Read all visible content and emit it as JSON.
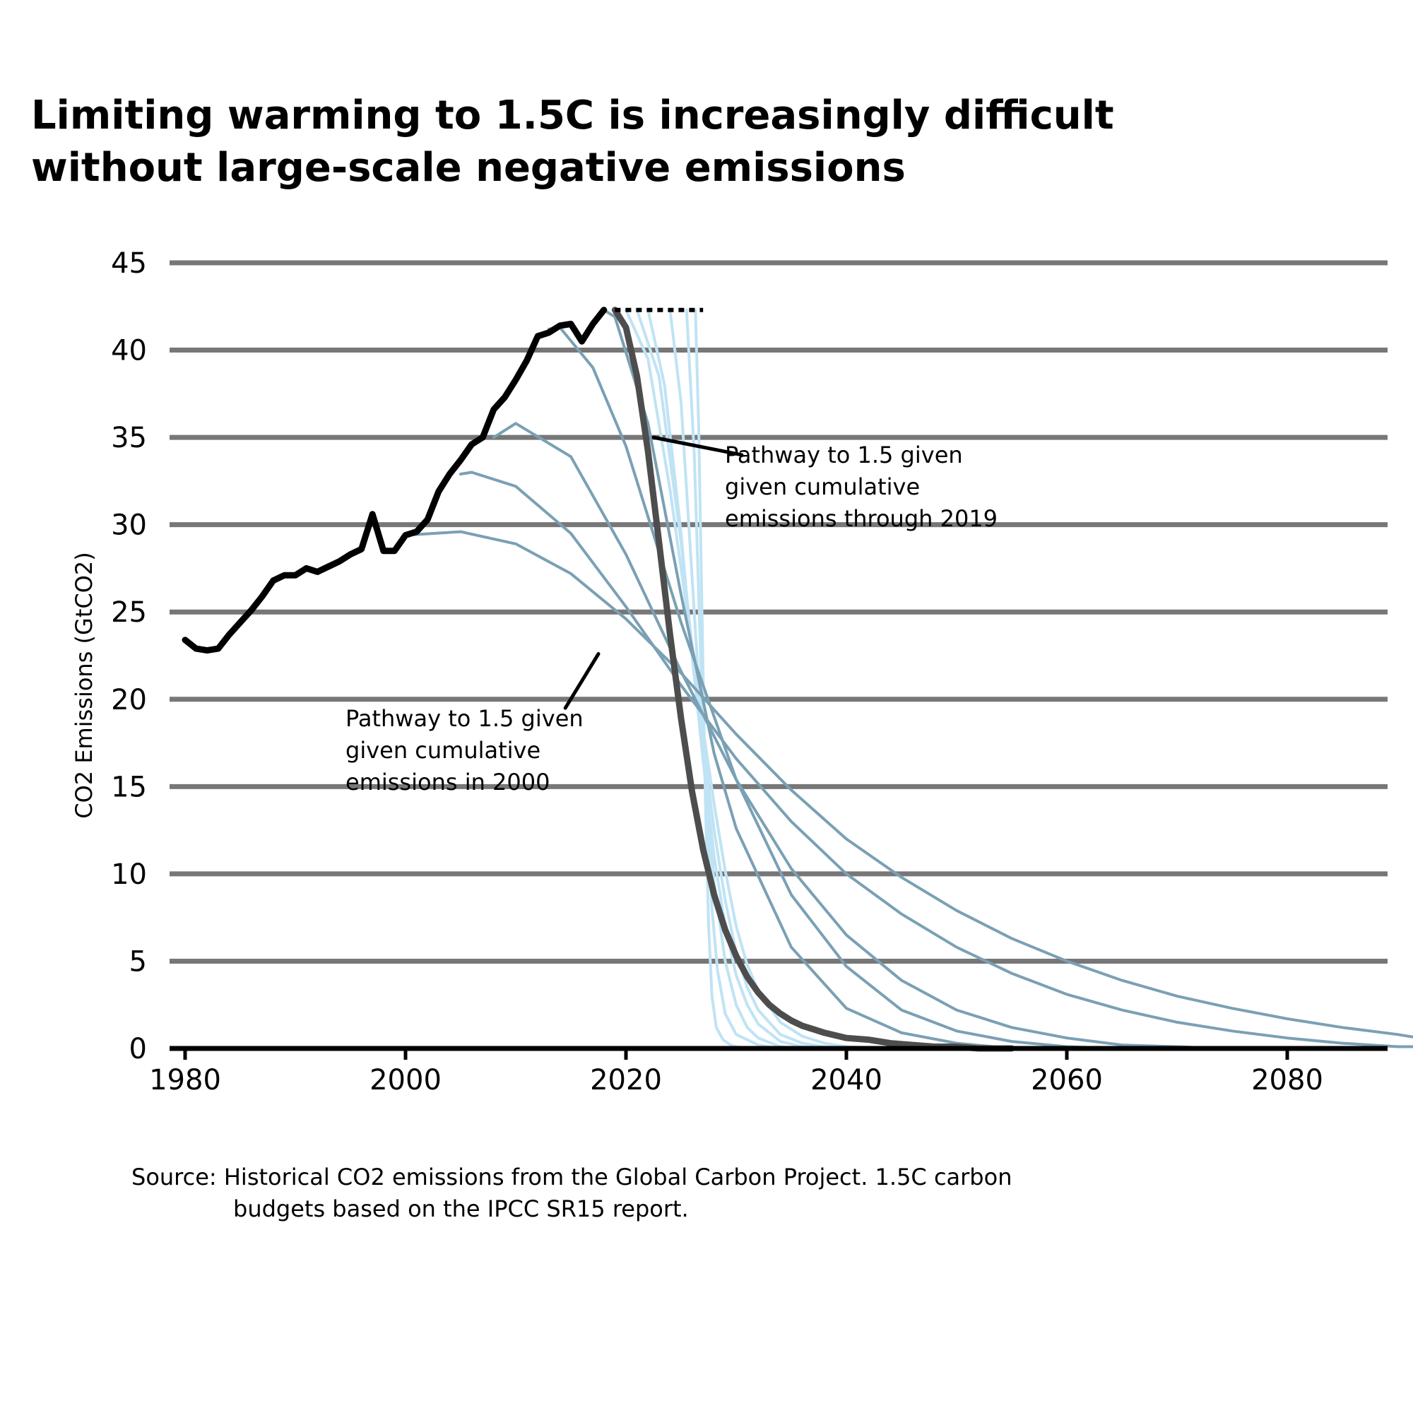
{
  "chart_data": {
    "type": "line",
    "title_lines": [
      "Limiting warming to 1.5C is increasingly difficult",
      "without large-scale negative emissions"
    ],
    "ylabel": "CO2 Emissions (GtCO2)",
    "xlabel": "",
    "xlim": [
      1980,
      2092
    ],
    "ylim": [
      0,
      45
    ],
    "xticks": [
      1980,
      2000,
      2020,
      2040,
      2060,
      2080
    ],
    "yticks": [
      0,
      5,
      10,
      15,
      20,
      25,
      30,
      35,
      40,
      45
    ],
    "grid": "horizontal",
    "colors": {
      "historical": "#000000",
      "pathway_2019": "#4d4d4d",
      "pathways_past": "#7aa0b4",
      "pathways_future": "#bfe3f4",
      "grid": "#777777",
      "axis": "#000000"
    },
    "historical": {
      "x": [
        1980,
        1981,
        1982,
        1983,
        1984,
        1985,
        1986,
        1987,
        1988,
        1989,
        1990,
        1991,
        1992,
        1993,
        1994,
        1995,
        1996,
        1997,
        1998,
        1999,
        2000,
        2001,
        2002,
        2003,
        2004,
        2005,
        2006,
        2007,
        2008,
        2009,
        2010,
        2011,
        2012,
        2013,
        2014,
        2015,
        2016,
        2017,
        2018
      ],
      "y": [
        23.4,
        22.9,
        22.8,
        22.9,
        23.7,
        24.4,
        25.1,
        25.9,
        26.8,
        27.1,
        27.1,
        27.5,
        27.3,
        27.6,
        27.9,
        28.3,
        28.6,
        30.6,
        28.5,
        28.5,
        29.4,
        29.6,
        30.3,
        31.9,
        32.9,
        33.7,
        34.6,
        35.0,
        36.6,
        37.3,
        38.3,
        39.4,
        40.8,
        41.0,
        41.4,
        41.5,
        40.5,
        41.5,
        42.3
      ]
    },
    "holding_line": {
      "x": [
        2019,
        2027
      ],
      "y": [
        42.3,
        42.3
      ],
      "style": "dotted"
    },
    "pathways_past": [
      {
        "start_year": 2000,
        "x": [
          2000,
          2005,
          2010,
          2015,
          2020,
          2025,
          2030,
          2035,
          2040,
          2045,
          2050,
          2055,
          2060,
          2065,
          2070,
          2075,
          2080,
          2085,
          2090,
          2092
        ],
        "y": [
          29.4,
          29.6,
          28.9,
          27.2,
          24.6,
          21.5,
          18.0,
          14.8,
          12.0,
          9.8,
          7.9,
          6.3,
          5.0,
          3.9,
          3.0,
          2.3,
          1.7,
          1.2,
          0.8,
          0.6
        ]
      },
      {
        "start_year": 2005,
        "x": [
          2005,
          2006,
          2010,
          2015,
          2020,
          2025,
          2030,
          2035,
          2040,
          2045,
          2050,
          2055,
          2060,
          2065,
          2070,
          2075,
          2080,
          2085,
          2090,
          2092
        ],
        "y": [
          32.9,
          33.0,
          32.2,
          29.5,
          25.3,
          20.8,
          16.6,
          13.0,
          10.0,
          7.7,
          5.8,
          4.3,
          3.1,
          2.2,
          1.5,
          1.0,
          0.6,
          0.3,
          0.1,
          0.1
        ]
      },
      {
        "start_year": 2008,
        "x": [
          2008,
          2010,
          2015,
          2020,
          2025,
          2030,
          2035,
          2040,
          2045,
          2050,
          2055,
          2060,
          2065,
          2070,
          2074
        ],
        "y": [
          35.0,
          35.8,
          33.9,
          28.3,
          21.6,
          15.4,
          10.3,
          6.5,
          3.9,
          2.2,
          1.2,
          0.6,
          0.2,
          0.1,
          0.0
        ]
      },
      {
        "start_year": 2013,
        "x": [
          2013,
          2014,
          2017,
          2020,
          2025,
          2030,
          2035,
          2040,
          2045,
          2050,
          2055,
          2060,
          2065
        ],
        "y": [
          41.2,
          41.3,
          39.0,
          34.5,
          24.4,
          15.4,
          8.8,
          4.7,
          2.2,
          1.0,
          0.4,
          0.1,
          0.0
        ]
      },
      {
        "start_year": 2018,
        "x": [
          2018,
          2019,
          2022,
          2025,
          2028,
          2030,
          2035,
          2040,
          2045,
          2050,
          2055
        ],
        "y": [
          42.3,
          41.9,
          35.8,
          26.0,
          16.9,
          12.6,
          5.8,
          2.3,
          0.9,
          0.3,
          0.0
        ]
      }
    ],
    "pathway_2019": {
      "name": "Pathway to 1.5 given given cumulative emissions through 2019",
      "x": [
        2019,
        2020,
        2021,
        2022,
        2023,
        2024,
        2025,
        2026,
        2027,
        2028,
        2029,
        2030,
        2031,
        2032,
        2033,
        2034,
        2035,
        2036,
        2037,
        2038,
        2040,
        2042,
        2044,
        2046,
        2048,
        2050,
        2052,
        2055
      ],
      "y": [
        42.3,
        41.3,
        38.5,
        34.2,
        29.0,
        23.7,
        18.9,
        14.7,
        11.4,
        8.8,
        6.8,
        5.3,
        4.1,
        3.2,
        2.5,
        2.0,
        1.6,
        1.3,
        1.1,
        0.9,
        0.6,
        0.5,
        0.3,
        0.2,
        0.1,
        0.1,
        0.0,
        0.0
      ]
    },
    "pathways_future": [
      {
        "x": [
          2020,
          2022,
          2024,
          2026,
          2027,
          2028,
          2029,
          2030,
          2031,
          2032,
          2034,
          2036,
          2038,
          2040,
          2042,
          2044
        ],
        "y": [
          42.3,
          39.5,
          32.0,
          23.0,
          18.3,
          14.0,
          10.2,
          7.0,
          4.8,
          3.3,
          1.5,
          0.7,
          0.3,
          0.1,
          0.05,
          0.0
        ]
      },
      {
        "x": [
          2021,
          2023,
          2025,
          2026,
          2027,
          2028,
          2029,
          2030,
          2031,
          2032,
          2034,
          2036,
          2038,
          2040
        ],
        "y": [
          42.3,
          38.5,
          29.0,
          23.0,
          17.5,
          12.5,
          8.5,
          5.5,
          3.5,
          2.2,
          0.8,
          0.3,
          0.1,
          0.0
        ]
      },
      {
        "x": [
          2022,
          2023.5,
          2025,
          2026,
          2027,
          2028,
          2029,
          2030,
          2031,
          2032,
          2034,
          2036,
          2038
        ],
        "y": [
          42.3,
          38.0,
          29.5,
          22.5,
          16.5,
          11.0,
          7.0,
          4.2,
          2.5,
          1.4,
          0.4,
          0.1,
          0.0
        ]
      },
      {
        "x": [
          2024,
          2025,
          2026,
          2027,
          2028,
          2029,
          2030,
          2031,
          2032,
          2034,
          2036
        ],
        "y": [
          42.3,
          37.0,
          27.0,
          16.8,
          9.5,
          5.0,
          2.5,
          1.2,
          0.6,
          0.1,
          0.0
        ]
      },
      {
        "x": [
          2025.5,
          2026.2,
          2026.8,
          2027.3,
          2027.8,
          2028.3,
          2029,
          2030,
          2032,
          2034
        ],
        "y": [
          42.3,
          34.0,
          22.0,
          14.0,
          8.0,
          4.5,
          2.0,
          0.8,
          0.2,
          0.0
        ]
      },
      {
        "x": [
          2026.3,
          2026.6,
          2026.9,
          2027.2,
          2027.5,
          2027.8,
          2028.2,
          2028.8,
          2029.5,
          2030,
          2031
        ],
        "y": [
          42.3,
          35.5,
          25.0,
          14.5,
          7.0,
          3.0,
          1.2,
          0.5,
          0.2,
          0.1,
          0.0
        ]
      }
    ],
    "annotations": [
      {
        "lines": [
          "Pathway to 1.5 given",
          "given cumulative",
          "emissions through 2019"
        ],
        "arrow_from": [
          2030.5,
          34.0
        ],
        "arrow_to": [
          2022.5,
          35.0
        ]
      },
      {
        "lines": [
          "Pathway to 1.5 given",
          "given cumulative",
          "emissions in 2000"
        ],
        "arrow_from": [
          2014.5,
          19.5
        ],
        "arrow_to": [
          2017.5,
          22.6
        ]
      }
    ],
    "source_lines": [
      "Source: Historical CO2 emissions from the Global Carbon Project. 1.5C carbon",
      "budgets based on the IPCC SR15 report."
    ]
  }
}
